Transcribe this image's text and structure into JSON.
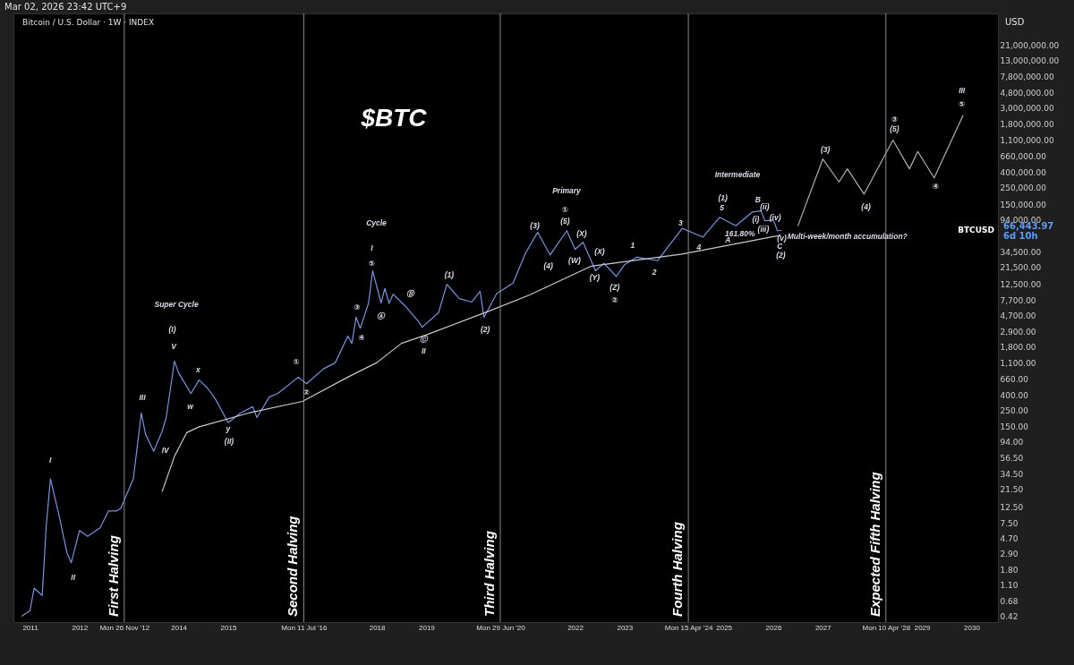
{
  "chart_data": {
    "type": "line",
    "title": "$BTC",
    "subtitle": "Bitcoin / U.S. Dollar · 1W · INDEX",
    "log": "y",
    "xlim": [
      "2010-09-01",
      "2030-07-15"
    ],
    "ylim": [
      0.35,
      56000000
    ],
    "xticks": [
      "2011",
      "2012",
      {
        "value": "2012-11-26",
        "label": "Mon 26 Nov '12"
      },
      "2014",
      "2015",
      {
        "value": "2016-07-11",
        "label": "Mon 11 Jul '16"
      },
      "2018",
      "2019",
      {
        "value": "2020-06-29",
        "label": "Mon 29 Jun '20"
      },
      "2022",
      "2023",
      {
        "value": "2024-04-15",
        "label": "Mon 15 Apr '24"
      },
      "2025",
      "2026",
      "2027",
      {
        "value": "2028-04-10",
        "label": "Mon 10 Apr '28"
      },
      "2029",
      "2030"
    ],
    "yticks": [
      {
        "value": 0.42,
        "label": "0.42"
      },
      {
        "value": 0.68,
        "label": "0.68"
      },
      {
        "value": 1.1,
        "label": "1.10"
      },
      {
        "value": 1.8,
        "label": "1.80"
      },
      {
        "value": 2.9,
        "label": "2.90"
      },
      {
        "value": 4.7,
        "label": "4.70"
      },
      {
        "value": 7.5,
        "label": "7.50"
      },
      {
        "value": 12.5,
        "label": "12.50"
      },
      {
        "value": 21.5,
        "label": "21.50"
      },
      {
        "value": 34.5,
        "label": "34.50"
      },
      {
        "value": 56.5,
        "label": "56.50"
      },
      {
        "value": 94,
        "label": "94.00"
      },
      {
        "value": 150,
        "label": "150.00"
      },
      {
        "value": 250,
        "label": "250.00"
      },
      {
        "value": 400,
        "label": "400.00"
      },
      {
        "value": 660,
        "label": "660.00"
      },
      {
        "value": 1100,
        "label": "1,100.00"
      },
      {
        "value": 1800,
        "label": "1,800.00"
      },
      {
        "value": 2900,
        "label": "2,900.00"
      },
      {
        "value": 4700,
        "label": "4,700.00"
      },
      {
        "value": 7700,
        "label": "7,700.00"
      },
      {
        "value": 12500,
        "label": "12,500.00"
      },
      {
        "value": 21500,
        "label": "21,500.00"
      },
      {
        "value": 34500,
        "label": "34,500.00"
      },
      {
        "value": 94000,
        "label": "94,000.00"
      },
      {
        "value": 150000,
        "label": "150,000.00"
      },
      {
        "value": 250000,
        "label": "250,000.00"
      },
      {
        "value": 400000,
        "label": "400,000.00"
      },
      {
        "value": 660000,
        "label": "660,000.00"
      },
      {
        "value": 1100000,
        "label": "1,100,000.00"
      },
      {
        "value": 1800000,
        "label": "1,800,000.00"
      },
      {
        "value": 3000000,
        "label": "3,000,000.00"
      },
      {
        "value": 4800000,
        "label": "4,800,000.00"
      },
      {
        "value": 7800000,
        "label": "7,800,000.00"
      },
      {
        "value": 13000000,
        "label": "13,000,000.00"
      },
      {
        "value": 21000000,
        "label": "21,000,000.00"
      }
    ],
    "series": [
      {
        "color": "#7b93d9",
        "x": [
          "2010-11",
          "2011-01",
          "2011-02",
          "2011-04",
          "2011-05",
          "2011-06",
          "2011-08",
          "2011-10",
          "2011-11",
          "2012-01",
          "2012-03",
          "2012-06",
          "2012-08",
          "2012-10",
          "2012-11",
          "2013-02",
          "2013-04",
          "2013-05",
          "2013-07",
          "2013-09",
          "2013-10",
          "2013-12",
          "2014-01",
          "2014-04",
          "2014-06",
          "2014-08",
          "2014-10",
          "2015-01",
          "2015-04",
          "2015-07",
          "2015-08",
          "2015-11",
          "2016-01",
          "2016-06",
          "2016-08",
          "2016-12",
          "2017-03",
          "2017-06",
          "2017-07",
          "2017-08",
          "2017-09",
          "2017-11",
          "2017-12",
          "2018-02",
          "2018-03",
          "2018-04",
          "2018-05",
          "2018-08",
          "2018-11",
          "2018-12",
          "2019-04",
          "2019-06",
          "2019-09",
          "2019-12",
          "2020-02",
          "2020-03",
          "2020-06",
          "2020-10",
          "2021-01",
          "2021-04",
          "2021-07",
          "2021-11",
          "2022-01",
          "2022-03",
          "2022-06",
          "2022-08",
          "2022-11",
          "2023-01",
          "2023-04",
          "2023-09",
          "2023-12",
          "2024-03",
          "2024-08",
          "2024-12",
          "2025-04",
          "2025-08",
          "2025-10",
          "2025-11",
          "2026-01",
          "2026-02",
          "2026-03-02"
        ],
        "values": [
          0.42,
          0.5,
          1.0,
          0.8,
          7,
          30,
          10,
          3,
          2.2,
          6,
          5,
          6.5,
          11,
          11,
          12,
          30,
          230,
          120,
          70,
          130,
          200,
          1150,
          800,
          420,
          640,
          500,
          350,
          170,
          230,
          280,
          200,
          380,
          420,
          700,
          570,
          900,
          1100,
          2500,
          2000,
          4500,
          3200,
          7000,
          19000,
          7000,
          11000,
          6900,
          9200,
          6300,
          4000,
          3300,
          5200,
          12500,
          8000,
          7200,
          10000,
          4500,
          9300,
          13000,
          33000,
          63000,
          31000,
          66000,
          37000,
          46000,
          19000,
          24000,
          16000,
          23000,
          29000,
          26000,
          43000,
          71000,
          54000,
          100000,
          77000,
          118000,
          122000,
          90000,
          92000,
          66000,
          66443.97
        ]
      },
      {
        "color": "#c8c8d0",
        "x": [
          "2013-09",
          "2013-12",
          "2014-03",
          "2014-06",
          "2015-06",
          "2016-07",
          "2017-06",
          "2018-01",
          "2018-07",
          "2019-01",
          "2020-04",
          "2021-02",
          "2022-05",
          "2024-03",
          "2026-01",
          "2026-03"
        ],
        "values": [
          20,
          60,
          125,
          150,
          230,
          330,
          700,
          1100,
          2000,
          2600,
          5400,
          9000,
          22000,
          32000,
          55000,
          57000
        ]
      },
      {
        "color": "#b0b0b8",
        "x": [
          "2026-07",
          "2027-01",
          "2027-05",
          "2027-07",
          "2027-11",
          "2028-06",
          "2028-10",
          "2028-12",
          "2029-04",
          "2029-11"
        ],
        "values": [
          76000,
          610000,
          300000,
          450000,
          205000,
          1100000,
          450000,
          770000,
          340000,
          2400000
        ]
      }
    ],
    "ref_lines": [
      {
        "axis": "x",
        "value": "2012-11-26",
        "label": "First Halving",
        "color": "#8c8c8c"
      },
      {
        "axis": "x",
        "value": "2016-07-11",
        "label": "Second Halving",
        "color": "#8c8c8c"
      },
      {
        "axis": "x",
        "value": "2020-06-29",
        "label": "Third Halving",
        "color": "#8c8c8c"
      },
      {
        "axis": "x",
        "value": "2024-04-15",
        "label": "Fourth Halving",
        "color": "#8c8c8c"
      },
      {
        "axis": "x",
        "value": "2028-04-10",
        "label": "Expected Fifth Halving",
        "color": "#8c8c8c"
      }
    ],
    "annotations": [
      "Mar 02, 2026 23:42 UTC+9",
      "USD",
      "BTCUSD",
      "66,443.97",
      "6d 10h",
      "Super Cycle",
      "(I)",
      "(II)",
      "I",
      "II",
      "III",
      "IV",
      "V",
      "x",
      "w",
      "y",
      "Cycle",
      "I",
      "⑤",
      "③",
      "④",
      "①",
      "②",
      "Ⓐ",
      "Ⓑ",
      "Ⓒ",
      "II",
      "(1)",
      "(2)",
      "Primary",
      "①",
      "(5)",
      "(3)",
      "(4)",
      "(X)",
      "(W)",
      "(X)",
      "(Y)",
      "(Z)",
      "②",
      "1",
      "2",
      "3",
      "4",
      "5",
      "(1)",
      "Intermediate",
      "A",
      "B",
      "(i)",
      "(ii)",
      "(iii)",
      "(iv)",
      "(v)",
      "161.80%",
      "C",
      "(2)",
      "Multi-week/month accumulation?",
      "(3)",
      "(4)",
      "③",
      "(5)",
      "④",
      "III",
      "⑤"
    ]
  }
}
